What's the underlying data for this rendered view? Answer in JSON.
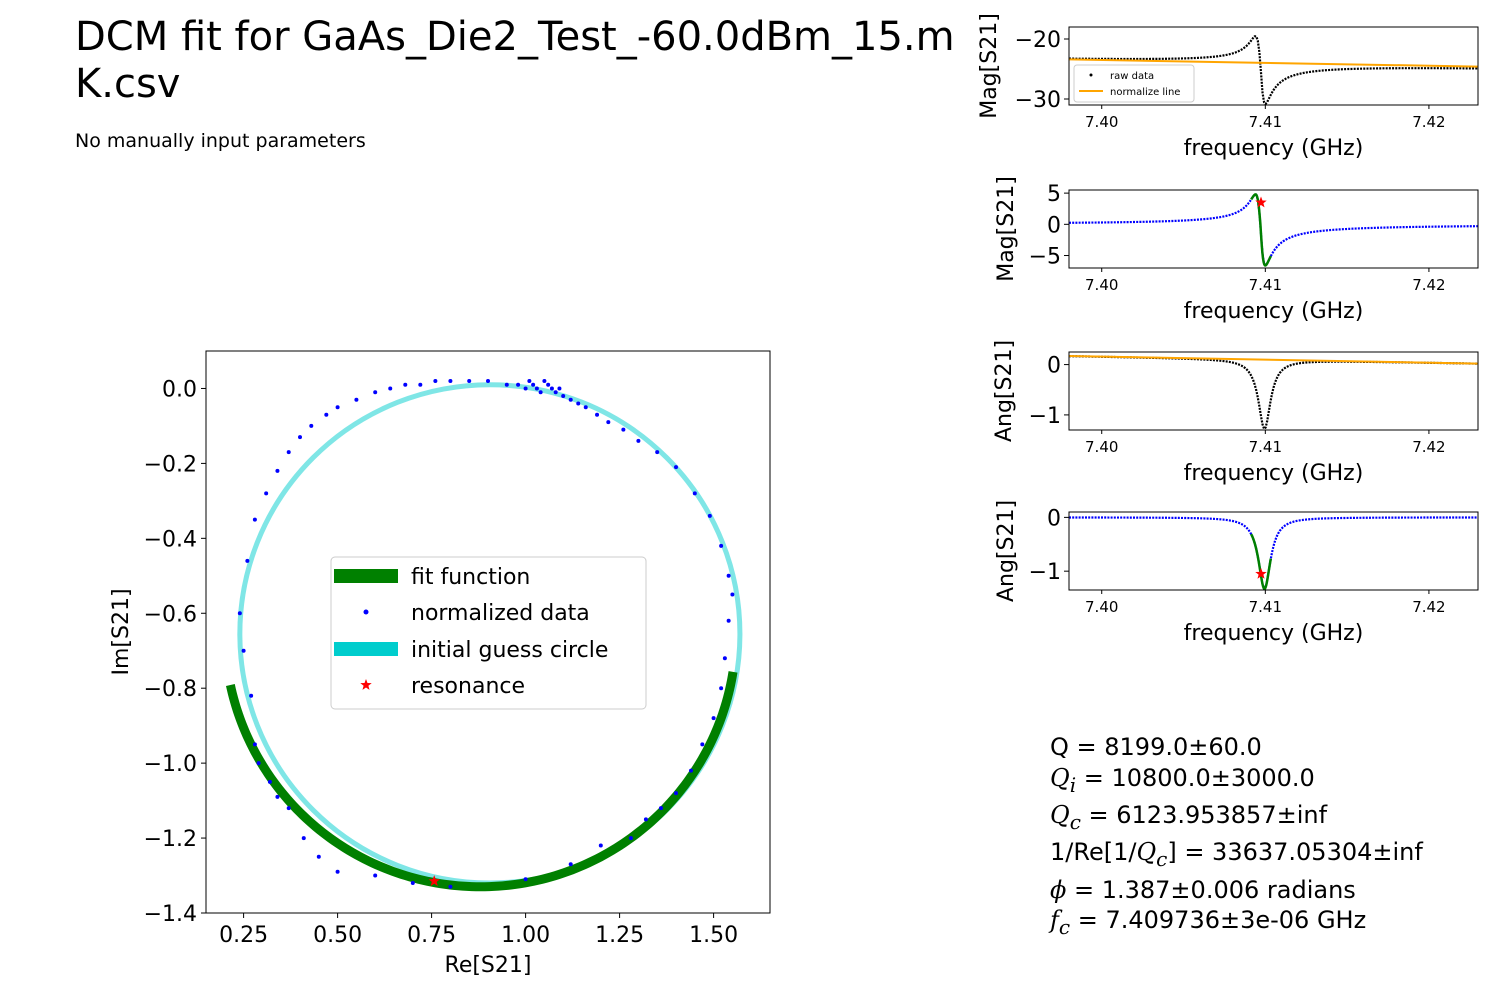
{
  "figure": {
    "title": "DCM fit for GaAs_Die2_Test_-60.0dBm_15.mK.csv",
    "subtitle": "No manually input parameters"
  },
  "colors": {
    "fit": "#008000",
    "data": "#0000ff",
    "raw": "#000000",
    "normalize": "#ffa500",
    "guess_circle": "#00cdcd",
    "resonance": "#ff0000"
  },
  "parameters": {
    "q_label": "Q",
    "q_value": " = 8199.0±60.0",
    "qi_base": "Q",
    "qi_sub": "i",
    "qi_value": " = 10800.0±3000.0",
    "qc_base": "Q",
    "qc_sub": "c",
    "qc_value": " = 6123.953857±inf",
    "inv_prefix": "1/Re[1/",
    "inv_base": "Q",
    "inv_sub": "c",
    "inv_value": "] = 33637.05304±inf",
    "phi_symbol": "ϕ",
    "phi_value": " = 1.387±0.006 radians",
    "fc_base": "f",
    "fc_sub": "c",
    "fc_value": " = 7.409736±3e-06 GHz"
  },
  "chart_data": [
    {
      "id": "circle",
      "type": "scatter",
      "xlabel": "Re[S21]",
      "ylabel": "Im[S21]",
      "xlim": [
        0.15,
        1.65
      ],
      "ylim": [
        -1.4,
        0.1
      ],
      "xticks": [
        0.25,
        0.5,
        0.75,
        1.0,
        1.25,
        1.5
      ],
      "xtick_labels": [
        "0.25",
        "0.50",
        "0.75",
        "1.00",
        "1.25",
        "1.50"
      ],
      "yticks": [
        0.0,
        -0.2,
        -0.4,
        -0.6,
        -0.8,
        -1.0,
        -1.2,
        -1.4
      ],
      "ytick_labels": [
        "0.0",
        "−0.2",
        "−0.4",
        "−0.6",
        "−0.8",
        "−1.0",
        "−1.2",
        "−1.4"
      ],
      "legend_position": "center",
      "legend": [
        "fit function",
        "normalized data",
        "initial guess circle",
        "resonance"
      ],
      "initial_guess_circle": {
        "center": [
          0.905,
          -0.655
        ],
        "radius": 0.665
      },
      "fit_arc": {
        "center": [
          0.88,
          -0.65
        ],
        "radius": 0.68,
        "start_deg": 192,
        "end_deg": 351
      },
      "resonance": {
        "x": 0.757,
        "y": -1.315
      },
      "normalized_data": [
        [
          0.26,
          -0.46
        ],
        [
          0.28,
          -0.35
        ],
        [
          0.31,
          -0.28
        ],
        [
          0.34,
          -0.22
        ],
        [
          0.37,
          -0.17
        ],
        [
          0.4,
          -0.13
        ],
        [
          0.43,
          -0.1
        ],
        [
          0.47,
          -0.07
        ],
        [
          0.5,
          -0.05
        ],
        [
          0.55,
          -0.03
        ],
        [
          0.6,
          -0.01
        ],
        [
          0.64,
          0.0
        ],
        [
          0.68,
          0.01
        ],
        [
          0.72,
          0.01
        ],
        [
          0.76,
          0.02
        ],
        [
          0.8,
          0.02
        ],
        [
          0.85,
          0.02
        ],
        [
          0.9,
          0.02
        ],
        [
          0.95,
          0.01
        ],
        [
          0.98,
          0.01
        ],
        [
          1.0,
          0.0
        ],
        [
          1.01,
          0.02
        ],
        [
          1.02,
          0.01
        ],
        [
          1.03,
          0.0
        ],
        [
          1.04,
          -0.01
        ],
        [
          1.05,
          0.02
        ],
        [
          1.06,
          0.01
        ],
        [
          1.07,
          0.0
        ],
        [
          1.08,
          -0.01
        ],
        [
          1.09,
          0.0
        ],
        [
          1.1,
          -0.02
        ],
        [
          1.12,
          -0.03
        ],
        [
          1.14,
          -0.04
        ],
        [
          1.16,
          -0.05
        ],
        [
          1.19,
          -0.07
        ],
        [
          1.22,
          -0.09
        ],
        [
          1.26,
          -0.11
        ],
        [
          1.3,
          -0.14
        ],
        [
          1.35,
          -0.17
        ],
        [
          1.4,
          -0.21
        ],
        [
          1.45,
          -0.28
        ],
        [
          1.49,
          -0.34
        ],
        [
          1.52,
          -0.42
        ],
        [
          1.54,
          -0.5
        ],
        [
          1.55,
          -0.55
        ],
        [
          1.54,
          -0.62
        ],
        [
          1.53,
          -0.72
        ],
        [
          0.24,
          -0.6
        ],
        [
          0.25,
          -0.7
        ],
        [
          0.27,
          -0.82
        ],
        [
          0.28,
          -0.95
        ],
        [
          0.29,
          -1.0
        ],
        [
          0.32,
          -1.05
        ],
        [
          0.34,
          -1.09
        ],
        [
          0.37,
          -1.12
        ],
        [
          0.41,
          -1.2
        ],
        [
          0.45,
          -1.25
        ],
        [
          0.5,
          -1.29
        ],
        [
          0.6,
          -1.3
        ],
        [
          0.7,
          -1.32
        ],
        [
          0.8,
          -1.33
        ],
        [
          1.0,
          -1.31
        ],
        [
          1.12,
          -1.27
        ],
        [
          1.2,
          -1.22
        ],
        [
          1.28,
          -1.2
        ],
        [
          1.32,
          -1.15
        ],
        [
          1.36,
          -1.12
        ],
        [
          1.4,
          -1.08
        ],
        [
          1.44,
          -1.02
        ],
        [
          1.47,
          -0.95
        ],
        [
          1.5,
          -0.88
        ],
        [
          1.52,
          -0.8
        ]
      ]
    },
    {
      "id": "raw_mag",
      "type": "line",
      "xlabel": "frequency (GHz)",
      "ylabel": "Mag[S21]",
      "xlim": [
        7.398,
        7.423
      ],
      "ylim": [
        -31,
        -18
      ],
      "xticks": [
        7.4,
        7.41,
        7.42
      ],
      "xtick_labels": [
        "7.40",
        "7.41",
        "7.42"
      ],
      "yticks": [
        -20,
        -30
      ],
      "ytick_labels": [
        "−20",
        "−30"
      ],
      "legend": [
        "raw data",
        "normalize line"
      ],
      "legend_position": "lower left",
      "normalize_line": {
        "x": [
          7.398,
          7.423
        ],
        "y": [
          -23.4,
          -24.6
        ]
      },
      "baseline": {
        "left": -23.5,
        "right": -24.6
      },
      "feature": {
        "f0": 7.4097,
        "peak": 4.5,
        "dip": -6.8,
        "width": 0.0003
      }
    },
    {
      "id": "norm_mag",
      "type": "line",
      "xlabel": "frequency (GHz)",
      "ylabel": "Mag[S21]",
      "xlim": [
        7.398,
        7.423
      ],
      "ylim": [
        -7,
        5.5
      ],
      "xticks": [
        7.4,
        7.41,
        7.42
      ],
      "xtick_labels": [
        "7.40",
        "7.41",
        "7.42"
      ],
      "yticks": [
        5,
        0,
        -5
      ],
      "ytick_labels": [
        "5",
        "0",
        "−5"
      ],
      "resonance": {
        "x": 7.409736,
        "y": 3.5
      },
      "baseline": {
        "left": 0.0,
        "right": 0.0
      },
      "feature": {
        "f0": 7.4097,
        "peak": 4.8,
        "dip": -6.6,
        "width": 0.0003
      }
    },
    {
      "id": "raw_ang",
      "type": "line",
      "xlabel": "frequency (GHz)",
      "ylabel": "Ang[S21]",
      "xlim": [
        7.398,
        7.423
      ],
      "ylim": [
        -1.3,
        0.25
      ],
      "xticks": [
        7.4,
        7.41,
        7.42
      ],
      "xtick_labels": [
        "7.40",
        "7.41",
        "7.42"
      ],
      "yticks": [
        0,
        -1
      ],
      "ytick_labels": [
        "0",
        "−1"
      ],
      "normalize_line": {
        "x": [
          7.398,
          7.423
        ],
        "y": [
          0.17,
          0.02
        ]
      },
      "baseline": {
        "left": 0.17,
        "right": 0.02
      },
      "dip": {
        "f0": 7.40995,
        "depth": -1.38,
        "width": 0.00045
      }
    },
    {
      "id": "norm_ang",
      "type": "line",
      "xlabel": "frequency (GHz)",
      "ylabel": "Ang[S21]",
      "xlim": [
        7.398,
        7.423
      ],
      "ylim": [
        -1.35,
        0.1
      ],
      "xticks": [
        7.4,
        7.41,
        7.42
      ],
      "xtick_labels": [
        "7.40",
        "7.41",
        "7.42"
      ],
      "yticks": [
        0,
        -1
      ],
      "ytick_labels": [
        "0",
        "−1"
      ],
      "resonance": {
        "x": 7.409736,
        "y": -1.05
      },
      "baseline": {
        "left": 0.0,
        "right": 0.0
      },
      "dip": {
        "f0": 7.40995,
        "depth": -1.33,
        "width": 0.00045
      }
    }
  ]
}
